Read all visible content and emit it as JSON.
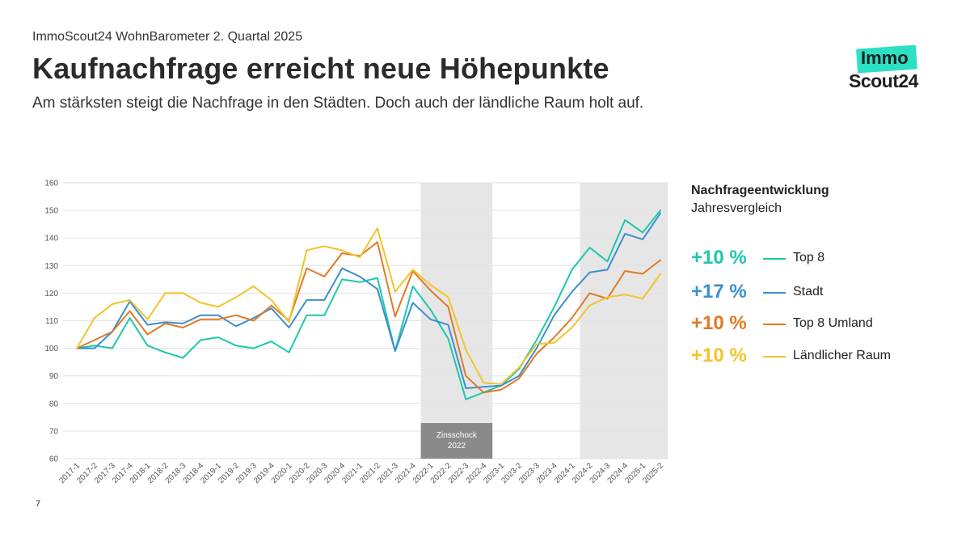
{
  "header": {
    "eyebrow": "ImmoScout24 WohnBarometer 2. Quartal 2025",
    "title": "Kaufnachfrage erreicht neue Höhepunkte",
    "subtitle": "Am stärksten steigt die Nachfrage in den Städten. Doch auch der ländliche Raum holt auf."
  },
  "logo": {
    "line1": "Immo",
    "line2": "Scout24"
  },
  "page_number": "7",
  "legend": {
    "heading": "Nachfrageentwicklung",
    "subheading": "Jahresvergleich",
    "items": [
      {
        "pct": "+10 %",
        "name": "Top 8",
        "color": "#1ec8aa"
      },
      {
        "pct": "+17 %",
        "name": "Stadt",
        "color": "#3b8fd0"
      },
      {
        "pct": "+10 %",
        "name": "Top 8 Umland",
        "color": "#e07a24"
      },
      {
        "pct": "+10 %",
        "name": "Ländlicher Raum",
        "color": "#f2c42a"
      }
    ]
  },
  "chart_data": {
    "type": "line",
    "x": [
      "2017-1",
      "2017-2",
      "2017-3",
      "2017-4",
      "2018-1",
      "2018-2",
      "2018-3",
      "2018-4",
      "2019-1",
      "2019-2",
      "2019-3",
      "2019-4",
      "2020-1",
      "2020-2",
      "2020-3",
      "2020-4",
      "2021-1",
      "2021-2",
      "2021-3",
      "2021-4",
      "2022-1",
      "2022-2",
      "2022-3",
      "2022-4",
      "2023-1",
      "2023-2",
      "2023-3",
      "2023-4",
      "2024-1",
      "2024-2",
      "2024-3",
      "2024-4",
      "2025-1",
      "2025-2"
    ],
    "ylim": [
      60,
      160
    ],
    "yticks": [
      60,
      70,
      80,
      90,
      100,
      110,
      120,
      130,
      140,
      150,
      160
    ],
    "grid": true,
    "shaded_periods": [
      {
        "from": "2022-1",
        "to": "2022-4",
        "label_line1": "Zinsschock",
        "label_line2": "2022"
      },
      {
        "from": "2024-2",
        "to": "2025-2"
      }
    ],
    "series": [
      {
        "name": "Top 8",
        "color": "#1ec8aa",
        "values": [
          100,
          101,
          100,
          111,
          101,
          98.5,
          96.5,
          103,
          104,
          101,
          100,
          102.5,
          98.5,
          112,
          112,
          125,
          124,
          125.5,
          99,
          122.5,
          114,
          103.5,
          81.5,
          84,
          86.5,
          92.5,
          103,
          115,
          128.5,
          136.5,
          131.5,
          146.5,
          142,
          150
        ]
      },
      {
        "name": "Stadt",
        "color": "#3b8fd0",
        "values": [
          100,
          100,
          106,
          117,
          108.5,
          109.5,
          109,
          112,
          112,
          108,
          111,
          114.5,
          107.5,
          117.5,
          117.5,
          129,
          126,
          121.5,
          99,
          116.5,
          110.5,
          108.5,
          85.5,
          86,
          86.5,
          90,
          100,
          112,
          120.5,
          127.5,
          128.5,
          141.5,
          139.5,
          149
        ]
      },
      {
        "name": "Top 8 Umland",
        "color": "#e07a24",
        "values": [
          100,
          103,
          106,
          113.5,
          105,
          109,
          107.5,
          110.5,
          110.5,
          112,
          110,
          115.5,
          110,
          129,
          126,
          134.5,
          133.5,
          138.5,
          111.5,
          128,
          121,
          115,
          90,
          84,
          85,
          89,
          98,
          104,
          111,
          120,
          118,
          128,
          127,
          132
        ]
      },
      {
        "name": "Ländlicher Raum",
        "color": "#f2c42a",
        "values": [
          100,
          111,
          116,
          117.5,
          110.5,
          120,
          120,
          116.5,
          115,
          118.5,
          122.5,
          117.5,
          109.5,
          135.5,
          137,
          135.5,
          133,
          143.5,
          120.5,
          128.5,
          123,
          118.5,
          99.5,
          87.5,
          87,
          93,
          101.5,
          102,
          107.5,
          115.5,
          118.5,
          119.5,
          118,
          127
        ]
      }
    ]
  }
}
